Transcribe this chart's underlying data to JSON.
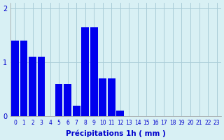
{
  "hours": [
    0,
    1,
    2,
    3,
    4,
    5,
    6,
    7,
    8,
    9,
    10,
    11,
    12,
    13,
    14,
    15,
    16,
    17,
    18,
    19,
    20,
    21,
    22,
    23
  ],
  "values": [
    1.4,
    1.4,
    1.1,
    1.1,
    0.0,
    0.6,
    0.6,
    0.2,
    1.65,
    1.65,
    0.7,
    0.7,
    0.1,
    0.0,
    0.0,
    0.0,
    0.0,
    0.0,
    0.0,
    0.0,
    0.0,
    0.0,
    0.0,
    0.0
  ],
  "bar_color": "#0000ee",
  "background_color": "#d8f0f4",
  "grid_color": "#aaccd8",
  "xlabel": "Précipitations 1h ( mm )",
  "ylim": [
    0,
    2.1
  ],
  "yticks": [
    0,
    1,
    2
  ],
  "xlabel_color": "#0000cc",
  "tick_color": "#0000cc"
}
